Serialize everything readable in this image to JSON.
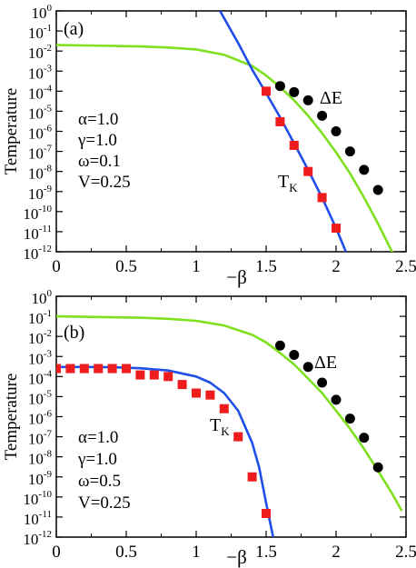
{
  "chart_data": [
    {
      "type": "line",
      "panel_label": "(a)",
      "ylabel": "Temperature",
      "xlabel": "−β",
      "xlim": [
        0,
        2.5
      ],
      "ylim_log10": [
        -12,
        0
      ],
      "x_ticks": [
        0,
        0.5,
        1,
        1.5,
        2,
        2.5
      ],
      "x_tick_labels": [
        "0",
        "0.5",
        "1",
        "1.5",
        "2",
        "2.5"
      ],
      "y_tick_exponents": [
        0,
        -1,
        -2,
        -3,
        -4,
        -5,
        -6,
        -7,
        -8,
        -9,
        -10,
        -11,
        -12
      ],
      "y_tick_base": "10",
      "params": [
        "α=1.0",
        "γ=1.0",
        "ω=0.1",
        "V=0.25"
      ],
      "annotations": [
        {
          "text": "ΔE",
          "series": "deltaE"
        },
        {
          "text": "T",
          "sub": "K",
          "series": "TK"
        }
      ],
      "series": [
        {
          "key": "deltaE_fit",
          "style": "line",
          "color": "#7ee01e",
          "x": [
            0,
            0.2,
            0.4,
            0.6,
            0.8,
            1.0,
            1.2,
            1.4,
            1.5,
            1.6,
            1.7,
            1.8,
            1.9,
            2.0,
            2.1,
            2.2,
            2.3,
            2.4,
            2.47
          ],
          "y": [
            0.02,
            0.019,
            0.018,
            0.017,
            0.015,
            0.012,
            0.0065,
            0.0018,
            0.0006,
            0.00016,
            3.5e-05,
            6e-06,
            8e-07,
            9e-08,
            8e-09,
            5e-10,
            2.5e-11,
            1e-12,
            3e-13
          ]
        },
        {
          "key": "deltaE_pts",
          "style": "circle",
          "color": "#000000",
          "x": [
            1.6,
            1.7,
            1.8,
            1.9,
            2.0,
            2.1,
            2.2,
            2.3
          ],
          "y": [
            0.00018,
            9e-05,
            3.5e-05,
            6e-06,
            1e-06,
            1e-07,
            1.2e-08,
            1.2e-09
          ]
        },
        {
          "key": "TK_fit",
          "style": "line",
          "color": "#1f4ee8",
          "x": [
            1.17,
            1.3,
            1.4,
            1.5,
            1.6,
            1.7,
            1.8,
            1.9,
            2.0,
            2.07
          ],
          "y": [
            1,
            0.025,
            0.0012,
            8e-05,
            5e-06,
            2.5e-07,
            1.2e-08,
            5e-10,
            1.5e-11,
            1e-12
          ]
        },
        {
          "key": "TK_pts",
          "style": "square",
          "color": "#ee1c1c",
          "x": [
            1.5,
            1.6,
            1.7,
            1.8,
            1.9,
            2.0
          ],
          "y": [
            0.0001,
            3e-06,
            2e-07,
            1e-08,
            5e-10,
            1.5e-11
          ]
        }
      ]
    },
    {
      "type": "line",
      "panel_label": "(b)",
      "ylabel": "Temperature",
      "xlabel": "−β",
      "xlim": [
        0,
        2.5
      ],
      "ylim_log10": [
        -12,
        0
      ],
      "x_ticks": [
        0,
        0.5,
        1,
        1.5,
        2,
        2.5
      ],
      "x_tick_labels": [
        "0",
        "0.5",
        "1",
        "1.5",
        "2",
        "2.5"
      ],
      "y_tick_exponents": [
        0,
        -1,
        -2,
        -3,
        -4,
        -5,
        -6,
        -7,
        -8,
        -9,
        -10,
        -11,
        -12
      ],
      "y_tick_base": "10",
      "params": [
        "α=1.0",
        "γ=1.0",
        "ω=0.5",
        "V=0.25"
      ],
      "annotations": [
        {
          "text": "ΔE",
          "series": "deltaE"
        },
        {
          "text": "T",
          "sub": "K",
          "series": "TK"
        }
      ],
      "series": [
        {
          "key": "deltaE_fit",
          "style": "line",
          "color": "#7ee01e",
          "x": [
            0,
            0.2,
            0.4,
            0.6,
            0.8,
            1.0,
            1.2,
            1.4,
            1.5,
            1.6,
            1.7,
            1.8,
            1.9,
            2.0,
            2.1,
            2.2,
            2.3,
            2.4,
            2.47
          ],
          "y": [
            0.1,
            0.095,
            0.09,
            0.085,
            0.075,
            0.06,
            0.035,
            0.012,
            0.005,
            0.0015,
            0.0004,
            8e-05,
            1.5e-05,
            2e-06,
            2.5e-07,
            2.5e-08,
            2e-09,
            1.5e-10,
            2e-11
          ]
        },
        {
          "key": "deltaE_pts",
          "style": "circle",
          "color": "#000000",
          "x": [
            1.6,
            1.7,
            1.8,
            1.9,
            2.0,
            2.1,
            2.2,
            2.3
          ],
          "y": [
            0.0035,
            0.0012,
            0.0003,
            5e-05,
            7e-06,
            8e-07,
            9e-08,
            3e-09
          ]
        },
        {
          "key": "TK_fit",
          "style": "line",
          "color": "#1f4ee8",
          "x": [
            0,
            0.2,
            0.4,
            0.6,
            0.8,
            1.0,
            1.1,
            1.2,
            1.3,
            1.4,
            1.45,
            1.5,
            1.55
          ],
          "y": [
            0.0003,
            0.0003,
            0.00029,
            0.00026,
            0.0002,
            0.0001,
            5e-05,
            1.5e-05,
            2e-06,
            5e-08,
            3e-09,
            5e-11,
            1e-12
          ]
        },
        {
          "key": "TK_pts",
          "style": "square",
          "color": "#ee1c1c",
          "x": [
            0,
            0.1,
            0.2,
            0.3,
            0.4,
            0.5,
            0.6,
            0.7,
            0.8,
            0.9,
            1.0,
            1.1,
            1.2,
            1.3,
            1.4,
            1.5
          ],
          "y": [
            0.00025,
            0.00025,
            0.00025,
            0.00025,
            0.00025,
            0.00025,
            0.00012,
            0.00012,
            0.0001,
            4e-05,
            1.5e-05,
            1.2e-05,
            2.5e-06,
            1e-07,
            1e-09,
            1.5e-11
          ]
        }
      ]
    }
  ]
}
